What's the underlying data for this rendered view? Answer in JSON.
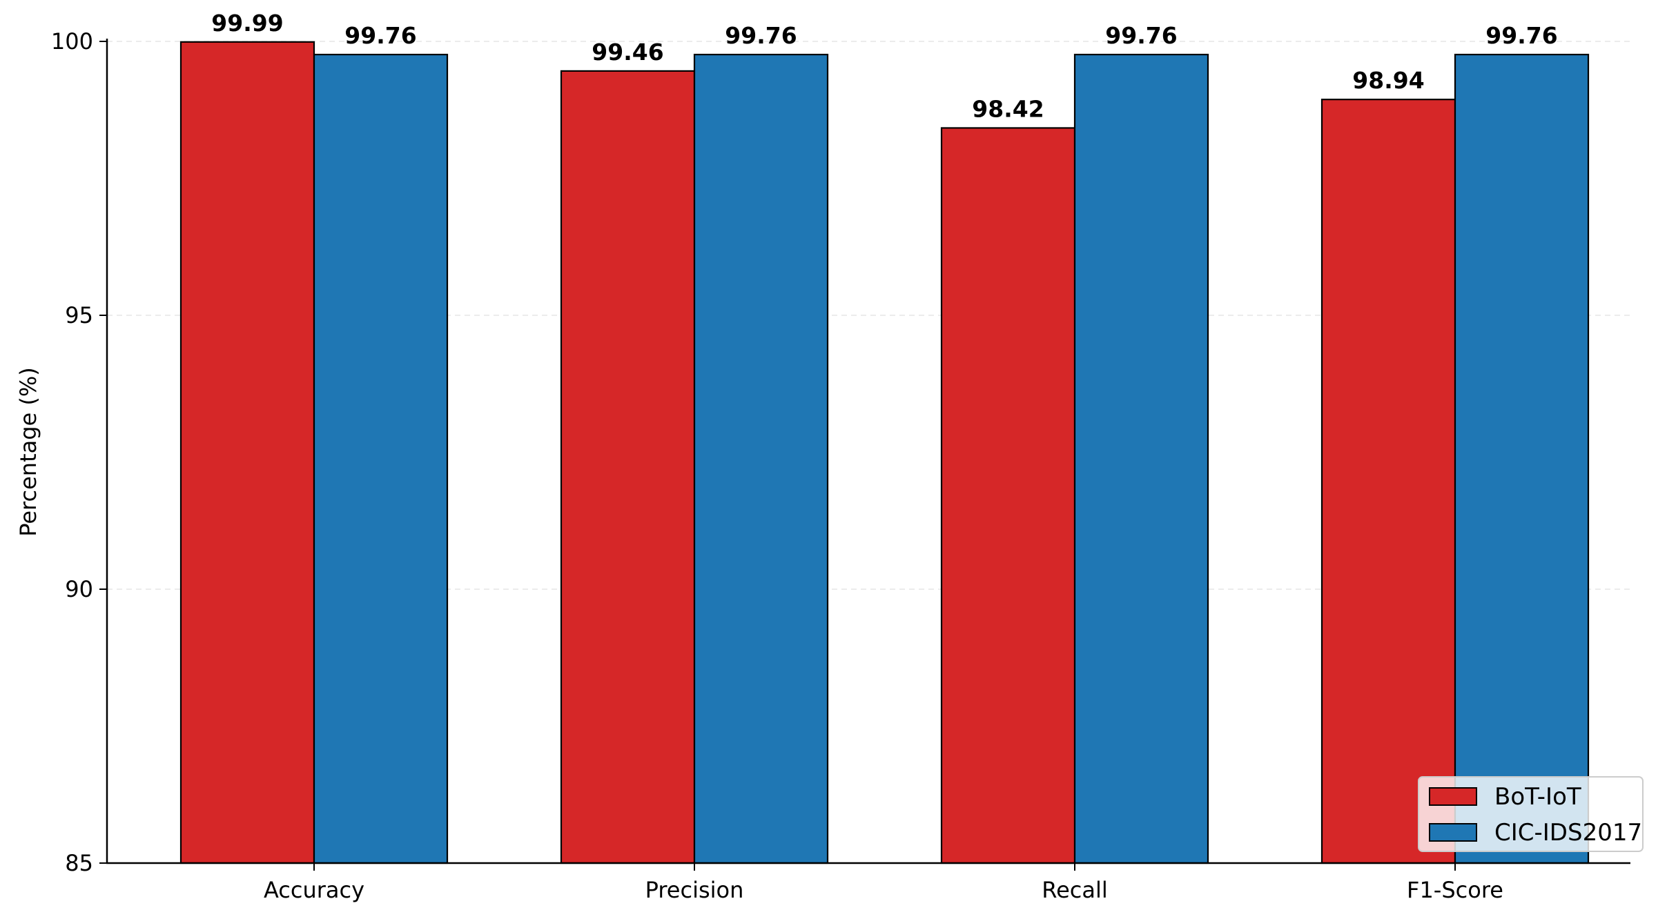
{
  "chart_data": {
    "type": "bar",
    "title": "",
    "xlabel": "",
    "ylabel": "Percentage (%)",
    "categories": [
      "Accuracy",
      "Precision",
      "Recall",
      "F1-Score"
    ],
    "series": [
      {
        "name": "BoT-IoT",
        "color": "#d62728",
        "values": [
          99.99,
          99.46,
          98.42,
          98.94
        ],
        "labels": [
          "99.99",
          "99.46",
          "98.42",
          "98.94"
        ]
      },
      {
        "name": "CIC-IDS2017",
        "color": "#1f77b4",
        "values": [
          99.76,
          99.76,
          99.76,
          99.76
        ],
        "labels": [
          "99.76",
          "99.76",
          "99.76",
          "99.76"
        ]
      }
    ],
    "ylim": [
      85,
      100
    ],
    "yticks": [
      85,
      90,
      95,
      100
    ],
    "ytick_labels": [
      "85",
      "90",
      "95",
      "100"
    ],
    "grid": "horizontal-dashed",
    "legend_position": "lower-right"
  }
}
